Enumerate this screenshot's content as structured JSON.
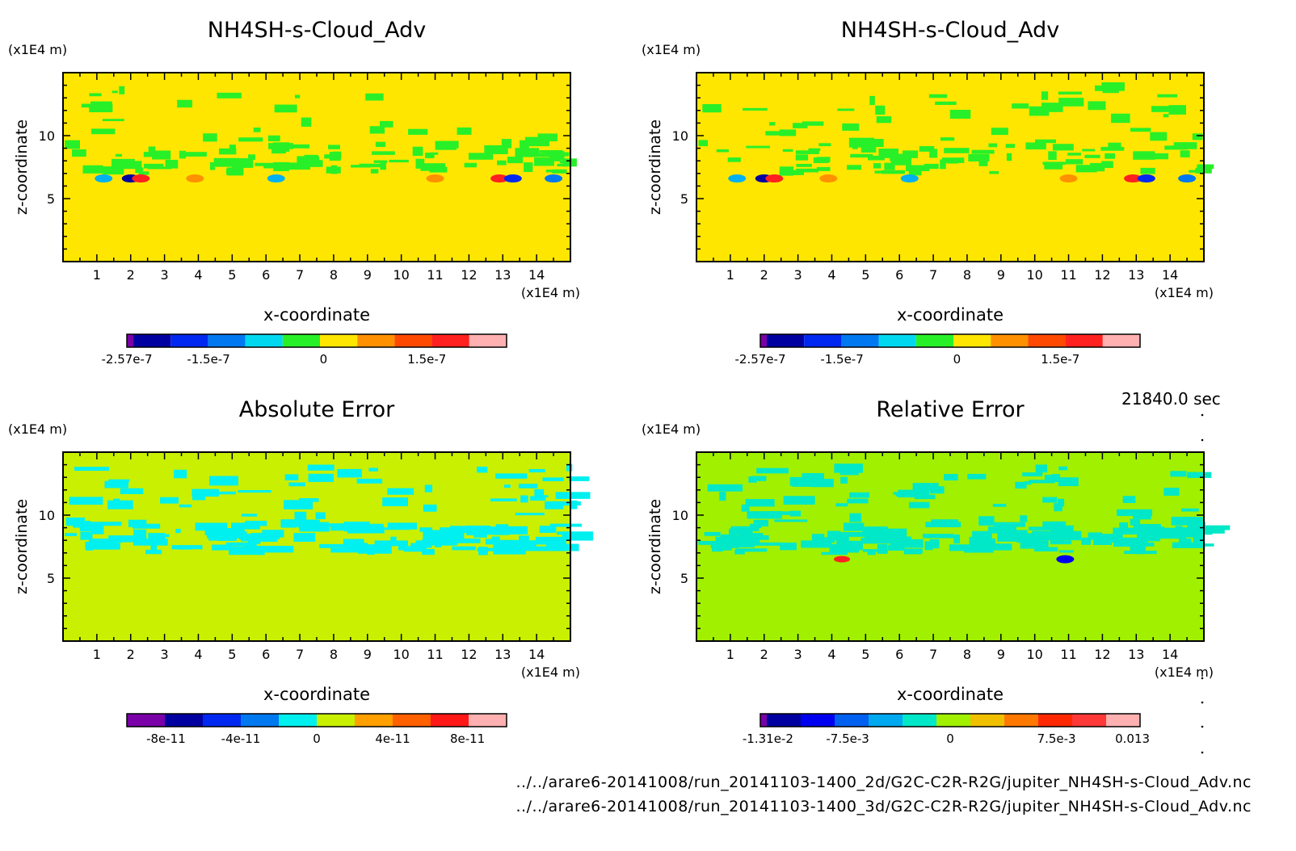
{
  "time": "21840.0 sec",
  "files": [
    "../../arare6-20141008/run_20141103-1400_2d/G2C-C2R-R2G/jupiter_NH4SH-s-Cloud_Adv.nc",
    "../../arare6-20141008/run_20141103-1400_3d/G2C-C2R-R2G/jupiter_NH4SH-s-Cloud_Adv.nc"
  ],
  "chart_data": [
    {
      "type": "heatmap",
      "title": "NH4SH-s-Cloud_Adv",
      "xlabel": "x-coordinate",
      "ylabel": "z-coordinate",
      "x_unit": "(x1E4 m)",
      "y_unit": "(x1E4 m)",
      "xlim": [
        0,
        15
      ],
      "ylim": [
        0,
        15
      ],
      "x_ticks": [
        "1",
        "2",
        "3",
        "4",
        "5",
        "6",
        "7",
        "8",
        "9",
        "10",
        "11",
        "12",
        "13",
        "14"
      ],
      "y_ticks": [
        "5",
        "10"
      ],
      "background": "#ffe600",
      "colorbar": {
        "colors": [
          "#7a00a8",
          "#0000a0",
          "#0028f0",
          "#0078f0",
          "#00d8f0",
          "#28f028",
          "#ffe600",
          "#ff9000",
          "#ff4800",
          "#ff2020",
          "#ffb0b0"
        ],
        "labels": [
          "-2.57e-7",
          "-1.5e-7",
          "0",
          "1.5e-7"
        ]
      }
    },
    {
      "type": "heatmap",
      "title": "NH4SH-s-Cloud_Adv",
      "xlabel": "x-coordinate",
      "ylabel": "z-coordinate",
      "x_unit": "(x1E4 m)",
      "y_unit": "(x1E4 m)",
      "xlim": [
        0,
        15
      ],
      "ylim": [
        0,
        15
      ],
      "x_ticks": [
        "1",
        "2",
        "3",
        "4",
        "5",
        "6",
        "7",
        "8",
        "9",
        "10",
        "11",
        "12",
        "13",
        "14"
      ],
      "y_ticks": [
        "5",
        "10"
      ],
      "background": "#ffe600",
      "colorbar": {
        "colors": [
          "#7a00a8",
          "#0000a0",
          "#0028f0",
          "#0078f0",
          "#00d8f0",
          "#28f028",
          "#ffe600",
          "#ff9000",
          "#ff4800",
          "#ff2020",
          "#ffb0b0"
        ],
        "labels": [
          "-2.57e-7",
          "-1.5e-7",
          "0",
          "1.5e-7"
        ]
      }
    },
    {
      "type": "heatmap",
      "title": "Absolute Error",
      "xlabel": "x-coordinate",
      "ylabel": "z-coordinate",
      "x_unit": "(x1E4 m)",
      "y_unit": "(x1E4 m)",
      "xlim": [
        0,
        15
      ],
      "ylim": [
        0,
        15
      ],
      "x_ticks": [
        "1",
        "2",
        "3",
        "4",
        "5",
        "6",
        "7",
        "8",
        "9",
        "10",
        "11",
        "12",
        "13",
        "14"
      ],
      "y_ticks": [
        "5",
        "10"
      ],
      "background": "#c8f000",
      "colorbar": {
        "colors": [
          "#7a00a8",
          "#0000a0",
          "#0028f0",
          "#0078f0",
          "#00f0f0",
          "#c8f000",
          "#ffa000",
          "#ff6000",
          "#ff1818",
          "#ffb0b0"
        ],
        "labels": [
          "-8e-11",
          "-4e-11",
          "0",
          "4e-11",
          "8e-11"
        ]
      }
    },
    {
      "type": "heatmap",
      "title": "Relative Error",
      "xlabel": "x-coordinate",
      "ylabel": "z-coordinate",
      "x_unit": "(x1E4 m)",
      "y_unit": "(x1E4 m)",
      "xlim": [
        0,
        15
      ],
      "ylim": [
        0,
        15
      ],
      "x_ticks": [
        "1",
        "2",
        "3",
        "4",
        "5",
        "6",
        "7",
        "8",
        "9",
        "10",
        "11",
        "12",
        "13",
        "14"
      ],
      "y_ticks": [
        "5",
        "10"
      ],
      "background": "#a0f000",
      "colorbar": {
        "colors": [
          "#7a00a8",
          "#0000a0",
          "#0000f0",
          "#0060f0",
          "#00a8f0",
          "#00e8c8",
          "#a0f000",
          "#f0c000",
          "#ff7800",
          "#ff2800",
          "#ff3838",
          "#ffb0b0"
        ],
        "labels": [
          "-1.31e-2",
          "-7.5e-3",
          "0",
          "7.5e-3",
          "0.013"
        ]
      }
    }
  ]
}
